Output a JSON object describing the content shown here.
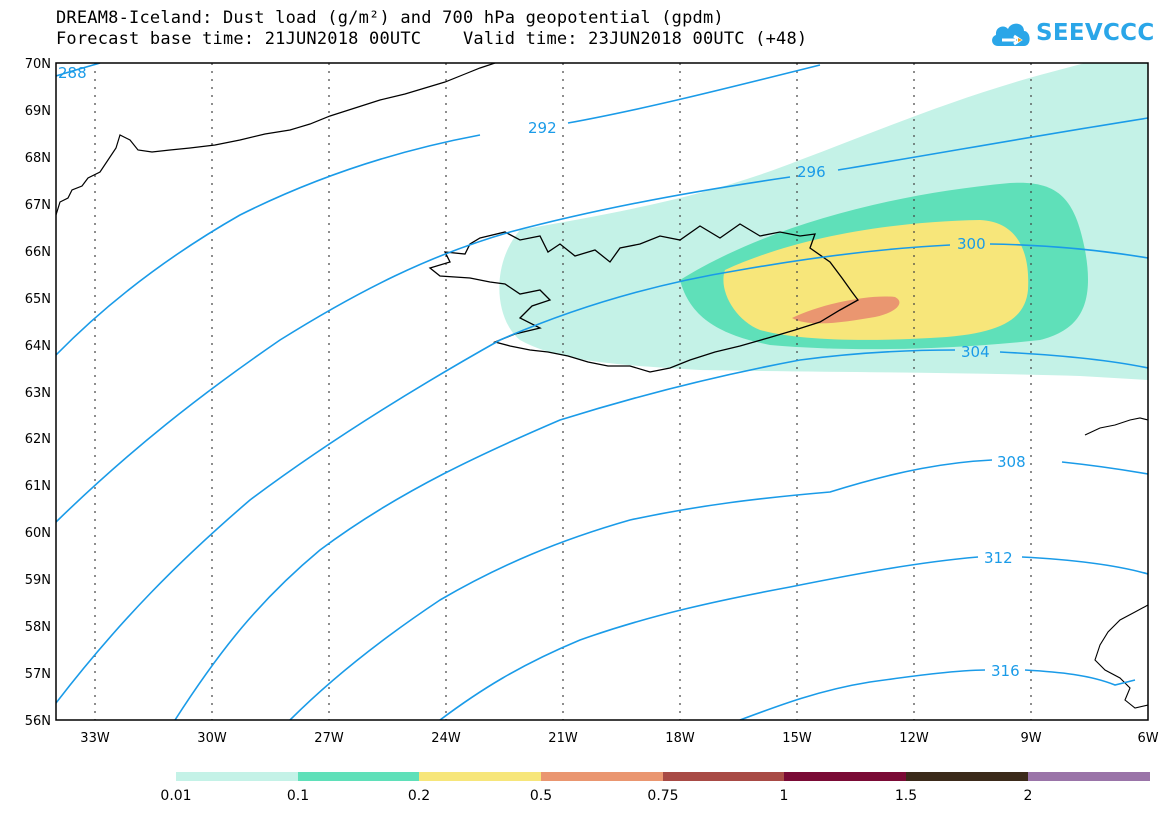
{
  "title_line1": "DREAM8-Iceland: Dust load (g/m²) and 700 hPa geopotential (gpdm)",
  "title_line2": "Forecast base time: 21JUN2018 00UTC    Valid time: 23JUN2018 00UTC (+48)",
  "logo_text": "SEEVCCC",
  "lat_labels": [
    "70N",
    "69N",
    "68N",
    "67N",
    "66N",
    "65N",
    "64N",
    "63N",
    "62N",
    "61N",
    "60N",
    "59N",
    "58N",
    "57N",
    "56N"
  ],
  "lon_labels": [
    "33W",
    "30W",
    "27W",
    "24W",
    "21W",
    "18W",
    "15W",
    "12W",
    "9W",
    "6W"
  ],
  "contour_labels": [
    "288",
    "292",
    "296",
    "300",
    "304",
    "308",
    "312",
    "316"
  ],
  "legend": {
    "labels": [
      "0.01",
      "0.1",
      "0.2",
      "0.5",
      "0.75",
      "1",
      "1.5",
      "2"
    ],
    "colors": [
      "#c4f2e7",
      "#5fe0b9",
      "#f7e67a",
      "#ea9670",
      "#a84a45",
      "#7a0a35",
      "#3b2a1a",
      "#9a74a8"
    ]
  },
  "colors": {
    "contour": "#1a9be8",
    "coast": "#000000",
    "dust_low": "#c4f2e7",
    "dust_mid": "#5fe0b9",
    "dust_high": "#f7e67a",
    "dust_top": "#ea9670"
  }
}
